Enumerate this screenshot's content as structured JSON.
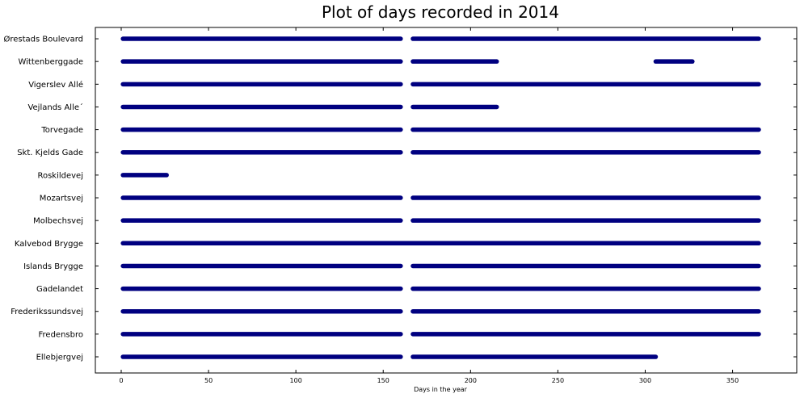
{
  "chart_data": {
    "type": "scatter",
    "title": "Plot of days recorded in 2014",
    "xlabel": "Days in the year",
    "ylabel": "",
    "xlim": [
      -20,
      385
    ],
    "xticks": [
      0,
      50,
      100,
      150,
      200,
      250,
      300,
      350
    ],
    "grid": false,
    "marker_color": "#000080",
    "categories": [
      "Ellebjergvej",
      "Fredensbro",
      "Frederikssundsvej",
      "Gadelandet",
      "Islands Brygge",
      "Kalvebod Brygge",
      "Molbechsvej",
      "Mozartsvej",
      "Roskildevej",
      "Skt. Kjelds Gade",
      "Torvegade",
      "Vejlands Alle´",
      "Vigerslev Allé",
      "Wittenberggade",
      "Ørestads Boulevard"
    ],
    "series": [
      {
        "category": "Ellebjergvej",
        "day_ranges": [
          [
            1,
            160
          ],
          [
            167,
            306
          ]
        ]
      },
      {
        "category": "Fredensbro",
        "day_ranges": [
          [
            1,
            160
          ],
          [
            167,
            365
          ]
        ]
      },
      {
        "category": "Frederikssundsvej",
        "day_ranges": [
          [
            1,
            160
          ],
          [
            167,
            365
          ]
        ]
      },
      {
        "category": "Gadelandet",
        "day_ranges": [
          [
            1,
            160
          ],
          [
            167,
            365
          ]
        ]
      },
      {
        "category": "Islands Brygge",
        "day_ranges": [
          [
            1,
            160
          ],
          [
            167,
            365
          ]
        ]
      },
      {
        "category": "Kalvebod Brygge",
        "day_ranges": [
          [
            1,
            365
          ]
        ]
      },
      {
        "category": "Molbechsvej",
        "day_ranges": [
          [
            1,
            160
          ],
          [
            167,
            365
          ]
        ]
      },
      {
        "category": "Mozartsvej",
        "day_ranges": [
          [
            1,
            160
          ],
          [
            167,
            365
          ]
        ]
      },
      {
        "category": "Roskildevej",
        "day_ranges": [
          [
            1,
            26
          ]
        ]
      },
      {
        "category": "Skt. Kjelds Gade",
        "day_ranges": [
          [
            1,
            160
          ],
          [
            167,
            365
          ]
        ]
      },
      {
        "category": "Torvegade",
        "day_ranges": [
          [
            1,
            160
          ],
          [
            167,
            365
          ]
        ]
      },
      {
        "category": "Vejlands Alle´",
        "day_ranges": [
          [
            1,
            160
          ],
          [
            167,
            215
          ]
        ]
      },
      {
        "category": "Vigerslev Allé",
        "day_ranges": [
          [
            1,
            160
          ],
          [
            167,
            365
          ]
        ]
      },
      {
        "category": "Wittenberggade",
        "day_ranges": [
          [
            1,
            160
          ],
          [
            167,
            215
          ],
          [
            306,
            327
          ]
        ]
      },
      {
        "category": "Ørestads Boulevard",
        "day_ranges": [
          [
            1,
            160
          ],
          [
            167,
            365
          ]
        ]
      }
    ]
  }
}
